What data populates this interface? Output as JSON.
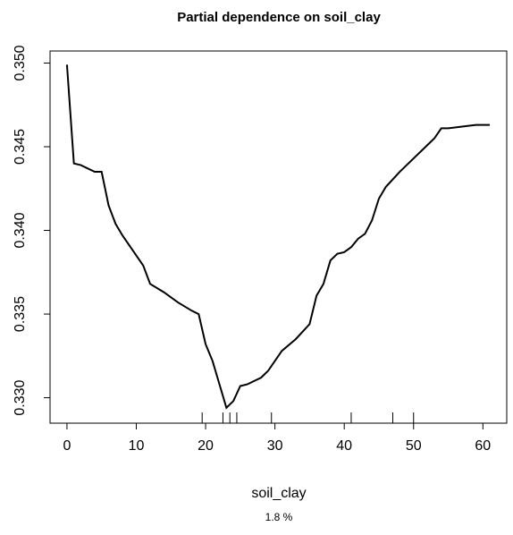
{
  "chart_data": {
    "type": "line",
    "title": "Partial dependence on soil_clay",
    "x_label": "soil_clay",
    "subtitle": "1.8 %",
    "x": [
      0,
      1,
      2,
      3,
      4,
      5,
      6,
      7,
      8,
      10,
      11,
      12,
      14,
      16,
      18,
      19,
      20,
      21,
      22,
      23,
      24,
      25,
      26,
      28,
      29,
      30,
      31,
      33,
      35,
      36,
      37,
      38,
      39,
      40,
      41,
      42,
      43,
      44,
      45,
      46,
      48,
      50,
      52,
      53,
      54,
      55,
      57,
      59,
      61
    ],
    "series": [
      {
        "color": "#000000",
        "values": [
          0.3499,
          0.344,
          0.3439,
          0.3437,
          0.3435,
          0.3435,
          0.3415,
          0.3404,
          0.3397,
          0.3385,
          0.3379,
          0.3368,
          0.3363,
          0.3357,
          0.3352,
          0.335,
          0.3332,
          0.3322,
          0.3308,
          0.3294,
          0.3298,
          0.3307,
          0.3308,
          0.3312,
          0.3316,
          0.3322,
          0.3328,
          0.3335,
          0.3344,
          0.3361,
          0.3368,
          0.3382,
          0.3386,
          0.3387,
          0.339,
          0.3395,
          0.3398,
          0.3406,
          0.3419,
          0.3426,
          0.3435,
          0.3443,
          0.3451,
          0.3455,
          0.3461,
          0.3461,
          0.3462,
          0.3463,
          0.3463
        ]
      }
    ],
    "rug": [
      19.5,
      22.5,
      23.5,
      24.5,
      29.5,
      41,
      47,
      50
    ],
    "xlim": [
      -2.44,
      63.44
    ],
    "ylim": [
      0.32848,
      0.35072
    ],
    "xticks": [
      0,
      10,
      20,
      30,
      40,
      50,
      60
    ],
    "yticks": [
      {
        "value": 0.33,
        "label": "0.330"
      },
      0.335,
      {
        "value": 0.34,
        "label": "0.340"
      },
      0.345,
      {
        "value": 0.35,
        "label": "0.350"
      }
    ]
  }
}
